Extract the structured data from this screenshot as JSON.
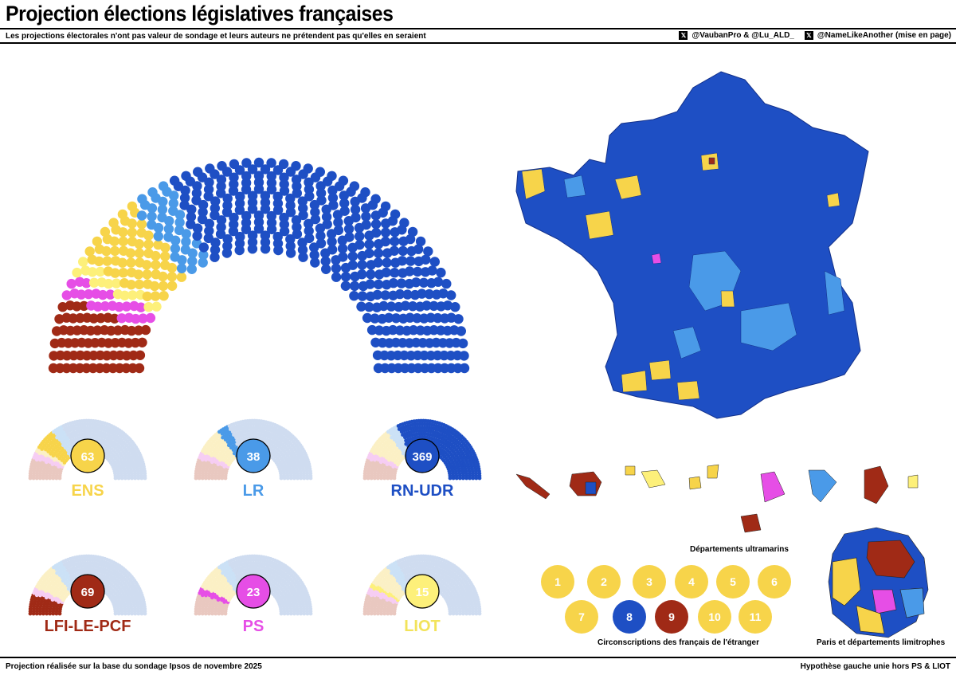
{
  "header": {
    "title": "Projection élections législatives françaises",
    "subtitle": "Les projections électorales n'ont pas valeur de sondage et leurs auteurs ne prétendent pas qu'elles en seraient",
    "credit_1": "@VaubanPro & @Lu_ALD_",
    "credit_2": "@NameLikeAnother (mise en page)",
    "credit_icon": "x-logo-icon"
  },
  "footer": {
    "left": "Projection réalisée sur la base du sondage Ipsos de novembre 2025",
    "right": "Hypothèse gauche unie hors PS & LIOT"
  },
  "colors": {
    "LFI-LE-PCF": "#a02a16",
    "PS": "#e64ee6",
    "LIOT": "#fdf07a",
    "ENS": "#f7d44a",
    "LR": "#4a9ae8",
    "RN-UDR": "#1e4fc4",
    "faded": "#cfdcf0"
  },
  "chart_data": {
    "type": "hemicycle",
    "total_seats": 577,
    "order": [
      "LFI-LE-PCF",
      "PS",
      "LIOT",
      "ENS",
      "LR",
      "RN-UDR"
    ],
    "parties": [
      {
        "name": "ENS",
        "seats": 63
      },
      {
        "name": "LR",
        "seats": 38
      },
      {
        "name": "RN-UDR",
        "seats": 369
      },
      {
        "name": "LFI-LE-PCF",
        "seats": 69
      },
      {
        "name": "PS",
        "seats": 23
      },
      {
        "name": "LIOT",
        "seats": 15
      }
    ]
  },
  "map": {
    "overseas_caption": "Départements ultramarins",
    "abroad_caption": "Circonscriptions des français de l'étranger",
    "paris_caption": "Paris et départements limitrophes",
    "abroad_circ": [
      {
        "label": "1",
        "party": "ENS"
      },
      {
        "label": "2",
        "party": "ENS"
      },
      {
        "label": "3",
        "party": "ENS"
      },
      {
        "label": "4",
        "party": "ENS"
      },
      {
        "label": "5",
        "party": "ENS"
      },
      {
        "label": "6",
        "party": "ENS"
      },
      {
        "label": "7",
        "party": "ENS"
      },
      {
        "label": "8",
        "party": "RN-UDR"
      },
      {
        "label": "9",
        "party": "LFI-LE-PCF"
      },
      {
        "label": "10",
        "party": "ENS"
      },
      {
        "label": "11",
        "party": "ENS"
      }
    ]
  }
}
